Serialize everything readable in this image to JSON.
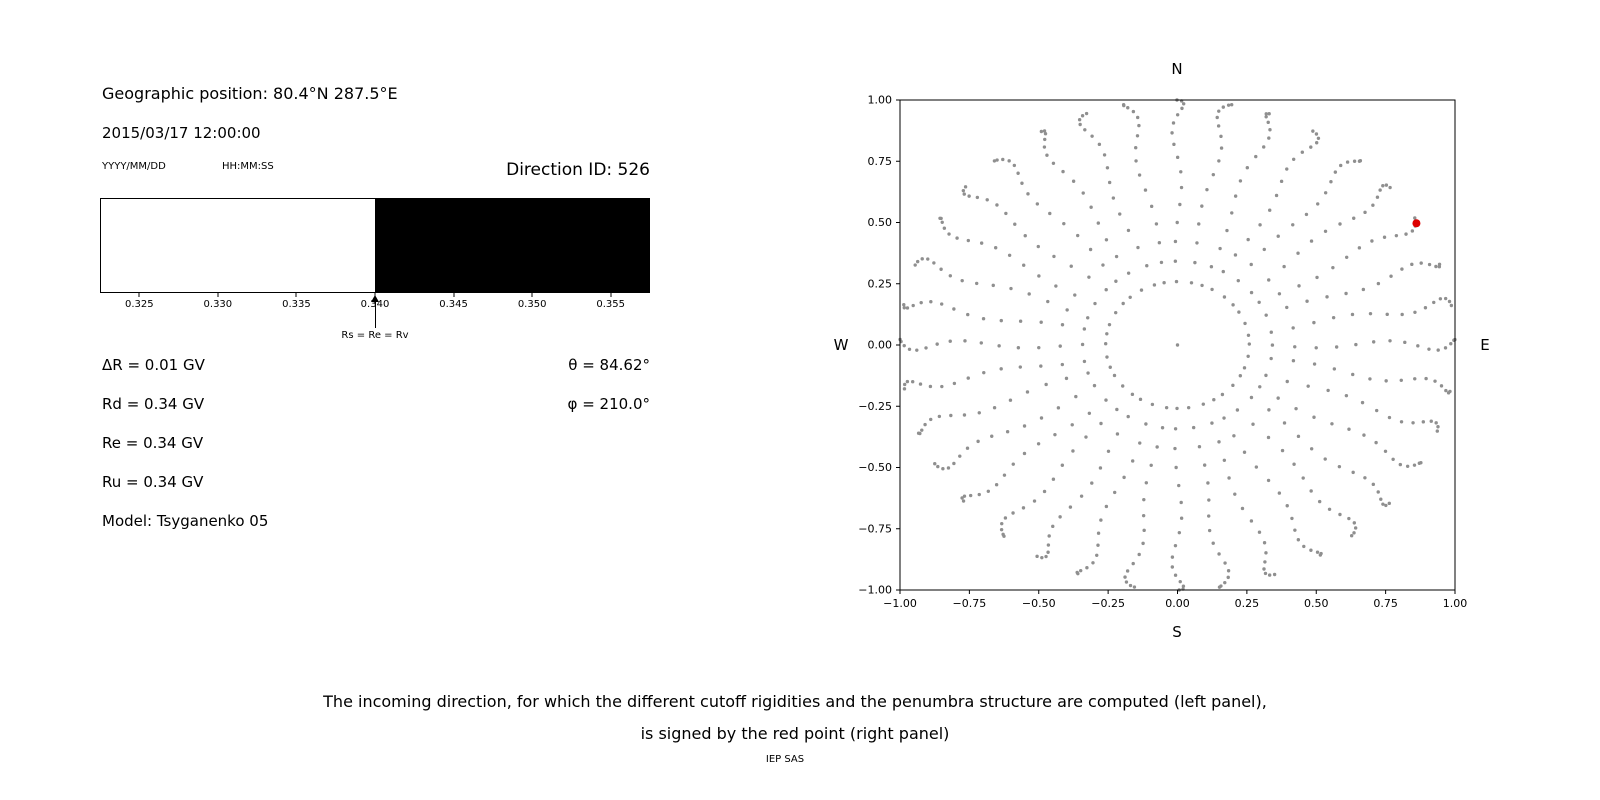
{
  "figure": {
    "background": "#ffffff",
    "credit": "IEP SAS"
  },
  "left_panel": {
    "geo_position": "Geographic position: 80.4°N 287.5°E",
    "datetime": "2015/03/17 12:00:00",
    "date_format_hint": "YYYY/MM/DD",
    "time_format_hint": "HH:MM:SS",
    "direction_id": "Direction ID: 526",
    "delta_r": "ΔR = 0.01 GV",
    "rd": "Rd = 0.34 GV",
    "re": "Re = 0.34 GV",
    "ru": "Ru = 0.34 GV",
    "model": "Model: Tsyganenko 05",
    "theta": "θ = 84.62°",
    "phi": "φ = 210.0°"
  },
  "caption": {
    "line1": "The incoming direction, for which the different cutoff rigidities and the penumbra structure are computed (left panel),",
    "line2": "is signed by the red point (right panel)"
  },
  "chart_data": [
    {
      "id": "penumbra-structure",
      "type": "heatmap",
      "title": "",
      "xlabel": "",
      "unit": "GV",
      "xlim": [
        0.3225,
        0.3575
      ],
      "xticks": [
        0.325,
        0.33,
        0.335,
        0.34,
        0.345,
        0.35,
        0.355
      ],
      "xtick_labels": [
        "0.325",
        "0.330",
        "0.335",
        "0.340",
        "0.345",
        "0.350",
        "0.355"
      ],
      "segments": [
        {
          "from": 0.3225,
          "to": 0.34,
          "color": "#ffffff"
        },
        {
          "from": 0.34,
          "to": 0.3575,
          "color": "#000000"
        }
      ],
      "annotation": {
        "x": 0.34,
        "label": "Rs = Re = Rv",
        "marker": "up-arrow"
      }
    },
    {
      "id": "incoming-direction-map",
      "type": "scatter",
      "xlim": [
        -1,
        1
      ],
      "ylim": [
        -1,
        1
      ],
      "xticks": [
        -1,
        -0.75,
        -0.5,
        -0.25,
        0,
        0.25,
        0.5,
        0.75,
        1
      ],
      "xtick_labels": [
        "−1.00",
        "−0.75",
        "−0.50",
        "−0.25",
        "0.00",
        "0.25",
        "0.50",
        "0.75",
        "1.00"
      ],
      "yticks": [
        -1,
        -0.75,
        -0.5,
        -0.25,
        0,
        0.25,
        0.5,
        0.75,
        1
      ],
      "ytick_labels": [
        "−1.00",
        "−0.75",
        "−0.50",
        "−0.25",
        "0.00",
        "0.25",
        "0.50",
        "0.75",
        "1.00"
      ],
      "direction_labels": {
        "top": "N",
        "bottom": "S",
        "left": "W",
        "right": "E"
      },
      "grid": false,
      "dot_color": "#8f8f8f",
      "dot_grid": {
        "description": "grid of incoming directions plotted as gray dots: radius = sin(zenith) along azimuthal spokes, with an inner ring and a center dot",
        "azimuth_step_deg": 10,
        "azimuth_count": 36,
        "zenith_start_deg": 15,
        "zenith_step_deg": 5,
        "zenith_end_deg": 90,
        "center_dot": true
      },
      "selected_point": {
        "x": 0.861,
        "y": 0.497,
        "color": "#dd0000",
        "theta_deg": 84.62,
        "phi_deg": 210.0
      }
    }
  ]
}
